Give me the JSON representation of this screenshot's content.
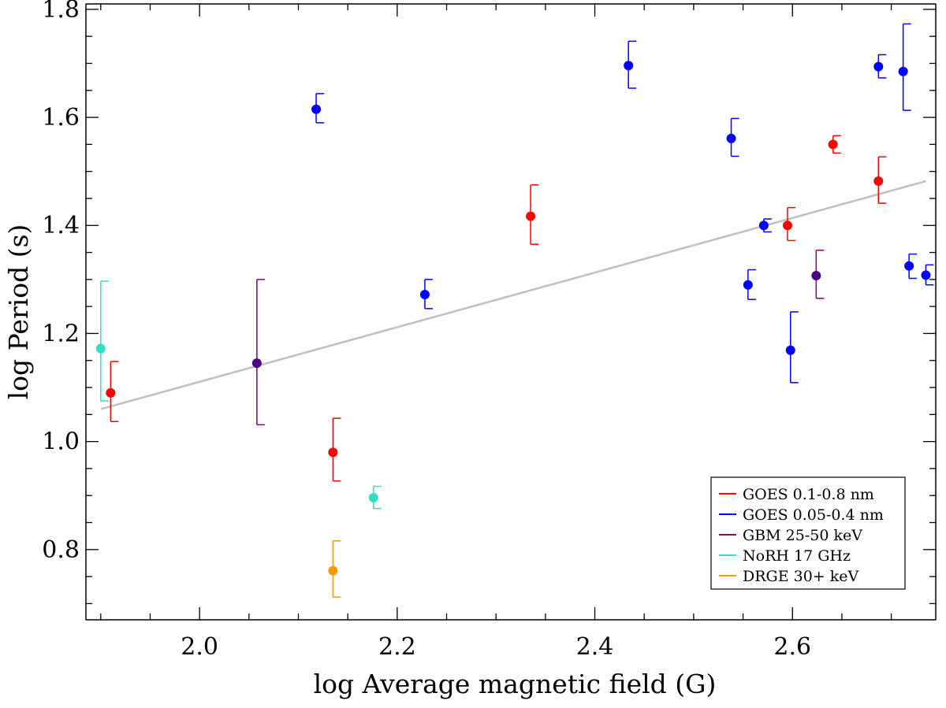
{
  "chart_data": {
    "type": "scatter",
    "title": "",
    "xlabel": "log Average magnetic field (G)",
    "ylabel": "log Period (s)",
    "xlim": [
      1.885,
      2.745
    ],
    "ylim": [
      0.67,
      1.81
    ],
    "x_ticks": [
      2.0,
      2.2,
      2.4,
      2.6
    ],
    "x_tick_labels": [
      "2.0",
      "2.2",
      "2.4",
      "2.6"
    ],
    "x_minor_step": 0.05,
    "y_ticks": [
      0.8,
      1.0,
      1.2,
      1.4,
      1.6,
      1.8
    ],
    "y_tick_labels": [
      "0.8",
      "1.0",
      "1.2",
      "1.4",
      "1.6",
      "1.8"
    ],
    "y_minor_step": 0.05,
    "grid": false,
    "legend_position": "bottom-right",
    "fit_line": {
      "color": "#c0c0c0",
      "x": [
        1.9,
        2.735
      ],
      "y": [
        1.06,
        1.482
      ]
    },
    "series": [
      {
        "name": "GOES 0.1-0.8 nm",
        "color": "#ff0000",
        "points": [
          {
            "x": 1.91,
            "y": 1.09,
            "lo": 1.037,
            "hi": 1.148
          },
          {
            "x": 2.135,
            "y": 0.98,
            "lo": 0.927,
            "hi": 1.043
          },
          {
            "x": 2.335,
            "y": 1.417,
            "lo": 1.365,
            "hi": 1.475
          },
          {
            "x": 2.595,
            "y": 1.4,
            "lo": 1.372,
            "hi": 1.433
          },
          {
            "x": 2.641,
            "y": 1.55,
            "lo": 1.534,
            "hi": 1.566
          },
          {
            "x": 2.687,
            "y": 1.482,
            "lo": 1.441,
            "hi": 1.527
          }
        ]
      },
      {
        "name": "GOES 0.05-0.4 nm",
        "color": "#0000ff",
        "points": [
          {
            "x": 2.118,
            "y": 1.615,
            "lo": 1.59,
            "hi": 1.644
          },
          {
            "x": 2.228,
            "y": 1.272,
            "lo": 1.246,
            "hi": 1.3
          },
          {
            "x": 2.434,
            "y": 1.696,
            "lo": 1.654,
            "hi": 1.741
          },
          {
            "x": 2.538,
            "y": 1.561,
            "lo": 1.528,
            "hi": 1.598
          },
          {
            "x": 2.555,
            "y": 1.29,
            "lo": 1.263,
            "hi": 1.318
          },
          {
            "x": 2.571,
            "y": 1.4,
            "lo": 1.388,
            "hi": 1.412
          },
          {
            "x": 2.598,
            "y": 1.169,
            "lo": 1.109,
            "hi": 1.24
          },
          {
            "x": 2.687,
            "y": 1.694,
            "lo": 1.673,
            "hi": 1.716
          },
          {
            "x": 2.712,
            "y": 1.685,
            "lo": 1.613,
            "hi": 1.773
          },
          {
            "x": 2.718,
            "y": 1.325,
            "lo": 1.302,
            "hi": 1.347
          },
          {
            "x": 2.735,
            "y": 1.308,
            "lo": 1.29,
            "hi": 1.327
          }
        ]
      },
      {
        "name": "GBM 25-50 keV",
        "color": "#800080",
        "marker_color": "#4b0082",
        "points": [
          {
            "x": 2.058,
            "y": 1.145,
            "lo": 1.031,
            "hi": 1.3
          },
          {
            "x": 2.624,
            "y": 1.307,
            "lo": 1.265,
            "hi": 1.354
          }
        ]
      },
      {
        "name": "NoRH 17 GHz",
        "color": "#30e0c0",
        "points": [
          {
            "x": 1.9,
            "y": 1.172,
            "lo": 1.075,
            "hi": 1.297
          },
          {
            "x": 2.176,
            "y": 0.896,
            "lo": 0.876,
            "hi": 0.917
          }
        ]
      },
      {
        "name": "DRGE 30+ keV",
        "color": "#ff9900",
        "points": [
          {
            "x": 2.135,
            "y": 0.761,
            "lo": 0.712,
            "hi": 0.816
          }
        ]
      }
    ]
  }
}
